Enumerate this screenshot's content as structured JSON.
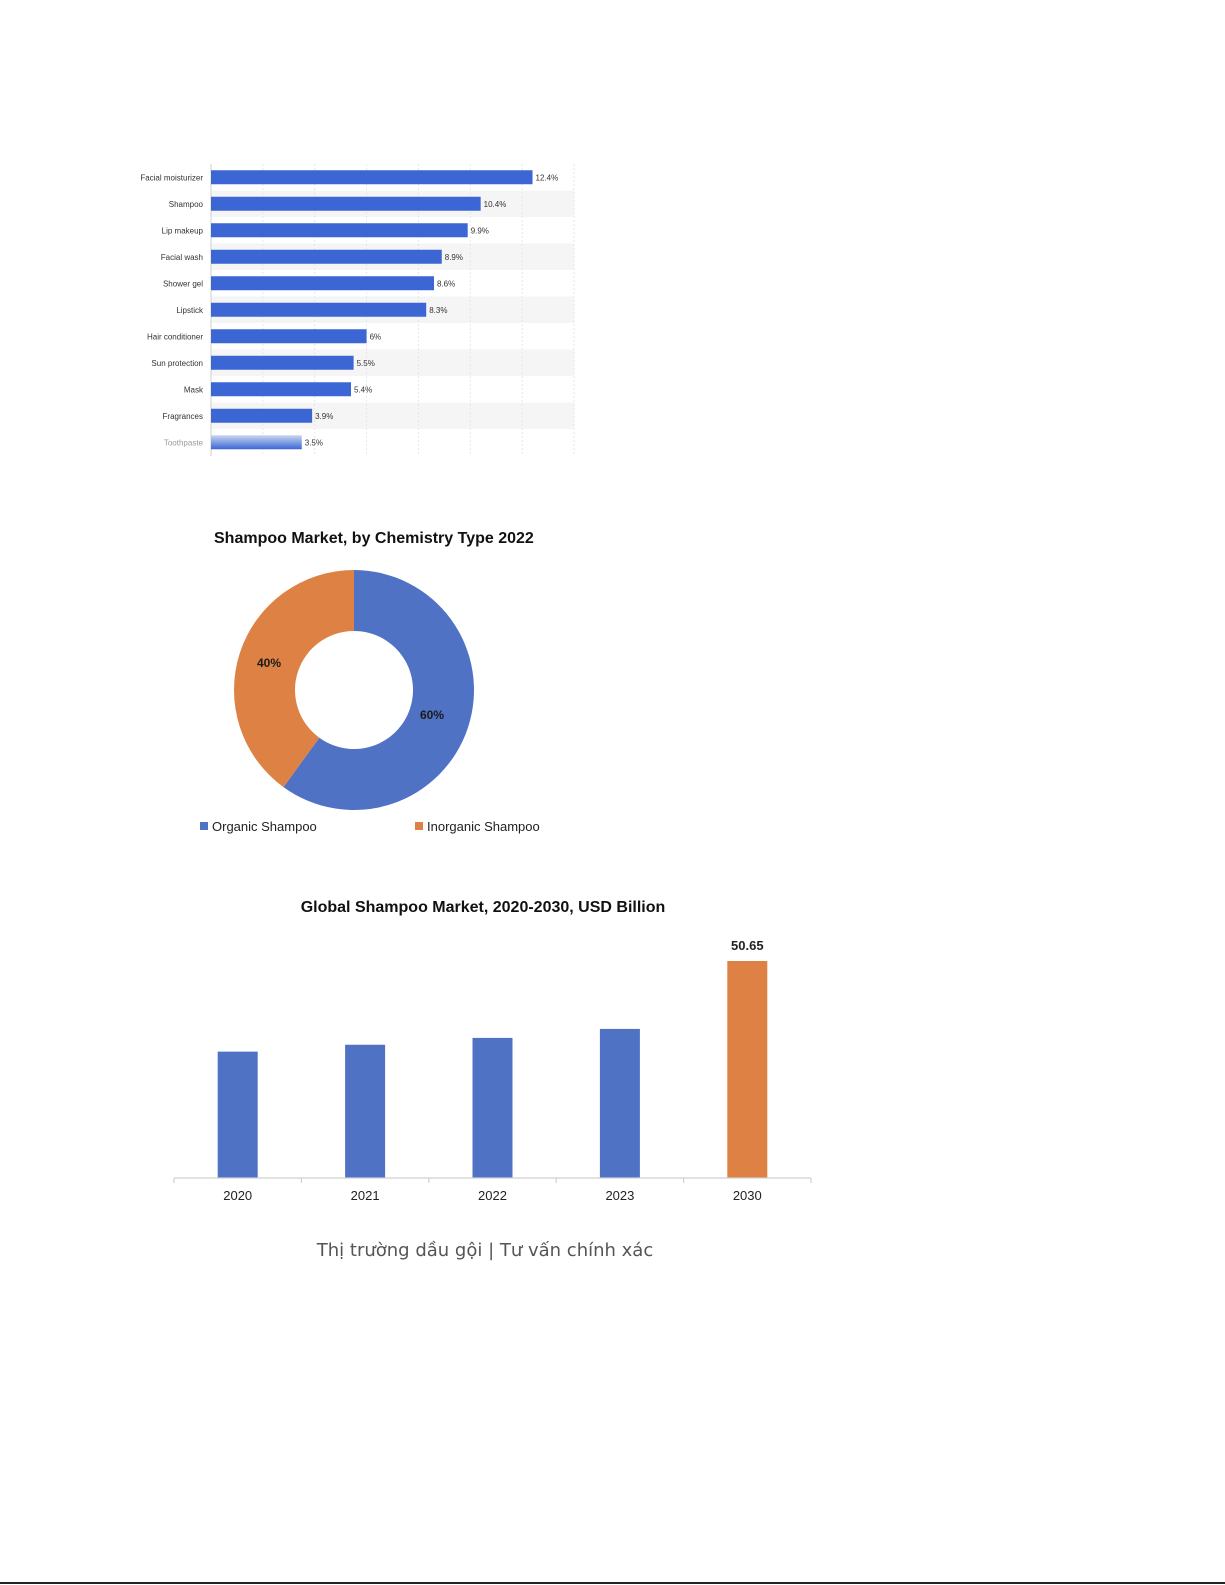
{
  "chart_data": [
    {
      "type": "bar",
      "orientation": "horizontal",
      "title": "",
      "categories": [
        "Facial moisturizer",
        "Shampoo",
        "Lip makeup",
        "Facial wash",
        "Shower gel",
        "Lipstick",
        "Hair conditioner",
        "Sun protection",
        "Mask",
        "Fragrances",
        "Toothpaste"
      ],
      "values": [
        12.4,
        10.4,
        9.9,
        8.9,
        8.6,
        8.3,
        6,
        5.5,
        5.4,
        3.9,
        3.5
      ],
      "labels": [
        "12.4%",
        "10.4%",
        "9.9%",
        "8.9%",
        "8.6%",
        "8.3%",
        "6%",
        "5.5%",
        "5.4%",
        "3.9%",
        "3.5%"
      ],
      "xlim": [
        0,
        14
      ],
      "grid": true,
      "colors": {
        "bar": "#3b66d3",
        "stripe": "#f5f5f5",
        "grid": "#e6e6e6"
      }
    },
    {
      "type": "pie",
      "donut": true,
      "title": "Shampoo Market, by Chemistry Type 2022",
      "slices": [
        {
          "name": "Organic Shampoo",
          "value": 60,
          "label": "60%",
          "color": "#4f72c4"
        },
        {
          "name": "Inorganic Shampoo",
          "value": 40,
          "label": "40%",
          "color": "#dd8244"
        }
      ],
      "legend": "bottom"
    },
    {
      "type": "bar",
      "orientation": "vertical",
      "title": "Global Shampoo Market, 2020-2030, USD Billion",
      "categories": [
        "2020",
        "2021",
        "2022",
        "2023",
        "2030"
      ],
      "values": [
        29.5,
        31.1,
        32.7,
        34.8,
        50.65
      ],
      "labels": [
        "",
        "",
        "",
        "",
        "50.65"
      ],
      "ylim": [
        0,
        55
      ],
      "colors": [
        "#4f72c4",
        "#4f72c4",
        "#4f72c4",
        "#4f72c4",
        "#dd8244"
      ]
    }
  ],
  "caption": "Thị trường dầu gội | Tư vấn chính xác"
}
